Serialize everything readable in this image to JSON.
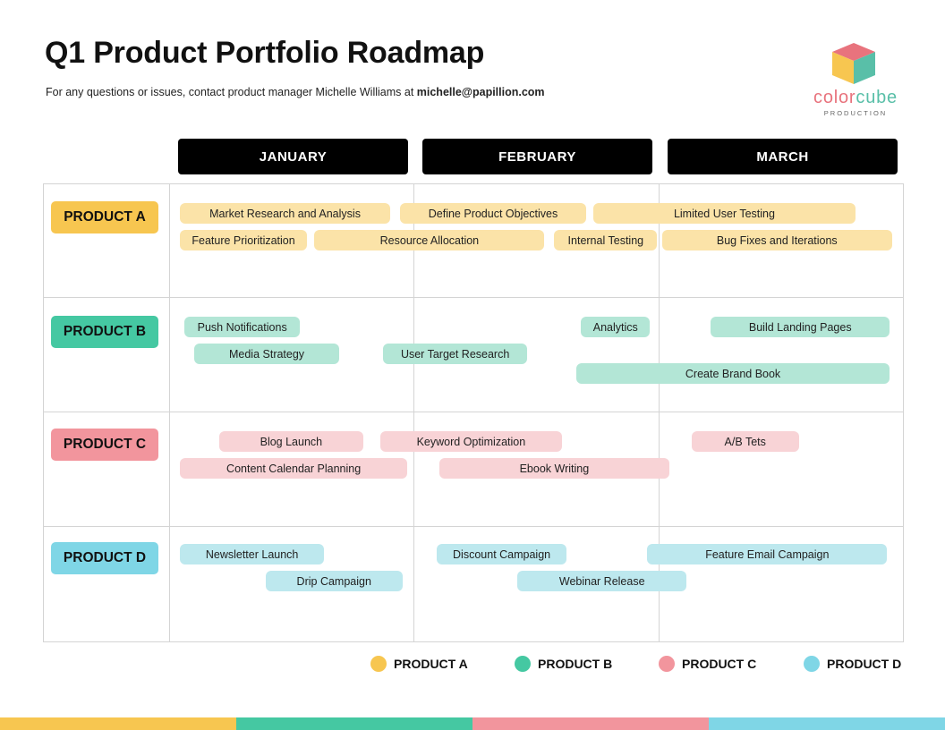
{
  "header": {
    "title": "Q1 Product Portfolio Roadmap",
    "subtitle_prefix": "For any questions or issues, contact product manager Michelle Williams at ",
    "email": "michelle@papillion.com"
  },
  "logo": {
    "word_part1": "color",
    "word_part2": "cube",
    "tagline": "PRODUCTION"
  },
  "months": [
    "JANUARY",
    "FEBRUARY",
    "MARCH"
  ],
  "colors": {
    "product_a": "#f7c650",
    "product_a_light": "#fbe3a8",
    "product_b": "#45c8a2",
    "product_b_light": "#b3e6d6",
    "product_c": "#f2959d",
    "product_c_light": "#f8d3d6",
    "product_d": "#7fd6e6",
    "product_d_light": "#bde8ee"
  },
  "products": [
    {
      "label": "PRODUCT A",
      "key": "a",
      "tasks": [
        {
          "name": "Market Research and Analysis",
          "lane": 0,
          "start": 0.04,
          "end": 0.9
        },
        {
          "name": "Define Product Objectives",
          "lane": 0,
          "start": 0.94,
          "end": 1.7
        },
        {
          "name": "Limited User Testing",
          "lane": 0,
          "start": 1.73,
          "end": 2.8
        },
        {
          "name": "Feature Prioritization",
          "lane": 1,
          "start": 0.04,
          "end": 0.56
        },
        {
          "name": "Resource Allocation",
          "lane": 1,
          "start": 0.59,
          "end": 1.53
        },
        {
          "name": "Internal Testing",
          "lane": 1,
          "start": 1.57,
          "end": 1.99
        },
        {
          "name": "Bug Fixes and Iterations",
          "lane": 1,
          "start": 2.01,
          "end": 2.95
        }
      ]
    },
    {
      "label": "PRODUCT B",
      "key": "b",
      "tasks": [
        {
          "name": "Push Notifications",
          "lane": 0,
          "start": 0.06,
          "end": 0.53
        },
        {
          "name": "Analytics",
          "lane": 0,
          "start": 1.68,
          "end": 1.96
        },
        {
          "name": "Build Landing Pages",
          "lane": 0,
          "start": 2.21,
          "end": 2.94
        },
        {
          "name": "Media Strategy",
          "lane": 1,
          "start": 0.1,
          "end": 0.69
        },
        {
          "name": "User Target Research",
          "lane": 1,
          "start": 0.87,
          "end": 1.46
        },
        {
          "name": "Create Brand Book",
          "lane": 2,
          "start": 1.66,
          "end": 2.94
        }
      ]
    },
    {
      "label": "PRODUCT C",
      "key": "c",
      "tasks": [
        {
          "name": "Blog Launch",
          "lane": 0,
          "start": 0.2,
          "end": 0.79
        },
        {
          "name": "Keyword Optimization",
          "lane": 0,
          "start": 0.86,
          "end": 1.6
        },
        {
          "name": "A/B Tets",
          "lane": 0,
          "start": 2.13,
          "end": 2.57
        },
        {
          "name": "Content Calendar Planning",
          "lane": 1,
          "start": 0.04,
          "end": 0.97
        },
        {
          "name": "Ebook Writing",
          "lane": 1,
          "start": 1.1,
          "end": 2.04
        }
      ]
    },
    {
      "label": "PRODUCT D",
      "key": "d",
      "tasks": [
        {
          "name": "Newsletter Launch",
          "lane": 0,
          "start": 0.04,
          "end": 0.63
        },
        {
          "name": "Discount Campaign",
          "lane": 0,
          "start": 1.09,
          "end": 1.62
        },
        {
          "name": "Feature Email Campaign",
          "lane": 0,
          "start": 1.95,
          "end": 2.93
        },
        {
          "name": "Drip Campaign",
          "lane": 1,
          "start": 0.39,
          "end": 0.95
        },
        {
          "name": "Webinar Release",
          "lane": 1,
          "start": 1.42,
          "end": 2.11
        }
      ]
    }
  ],
  "legend": [
    {
      "label": "PRODUCT A",
      "key": "a"
    },
    {
      "label": "PRODUCT B",
      "key": "b"
    },
    {
      "label": "PRODUCT C",
      "key": "c"
    },
    {
      "label": "PRODUCT D",
      "key": "d"
    }
  ]
}
